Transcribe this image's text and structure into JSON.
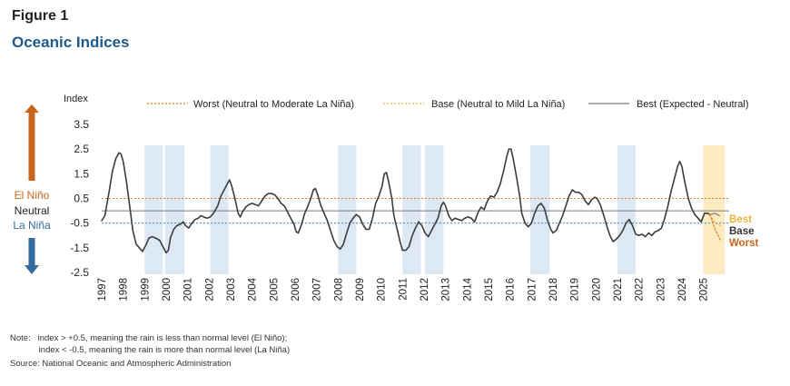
{
  "figure_label": "Figure 1",
  "figure_title": "Oceanic Indices",
  "left_axis_labels": {
    "el_nino": "El Niño",
    "neutral": "Neutral",
    "la_nina": "La Niña"
  },
  "colors": {
    "title_blue": "#1f5a8a",
    "arrow_up": "#c8661e",
    "arrow_down": "#356a9c",
    "band": "#dce8f3",
    "forecast_band": "#fdebc2",
    "worst_line": "#e07b2a",
    "base_line": "#f2b23a",
    "best_line": "#7a7a7a",
    "threshold_low": "#4a86c5",
    "series": "#3c3c3c"
  },
  "chart_data": {
    "type": "line",
    "ylabel": "Index",
    "ylim": [
      -2.5,
      3.5
    ],
    "yticks": [
      "3.5",
      "2.5",
      "1.5",
      "0.5",
      "-0.5",
      "-1.5",
      "-2.5"
    ],
    "xlim": [
      1997,
      2026.2
    ],
    "x_ticks": [
      "1997",
      "1998",
      "1999",
      "2000",
      "2001",
      "2002",
      "2003",
      "2004",
      "2005",
      "2006",
      "2007",
      "2008",
      "2009",
      "2010",
      "2011",
      "2012",
      "2013",
      "2014",
      "2015",
      "2016",
      "2017",
      "2018",
      "2019",
      "2020",
      "2021",
      "2022",
      "2023",
      "2024",
      "2025"
    ],
    "legend": [
      {
        "name": "Worst (Neutral to Moderate La Niña)",
        "style": "dotted-orange"
      },
      {
        "name": "Base (Neutral to Mild La Niña)",
        "style": "dotted-gold"
      },
      {
        "name": "Best (Expected - Neutral)",
        "style": "solid-gray"
      }
    ],
    "reference_lines": [
      {
        "name": "el-nino-threshold",
        "value": 0.5
      },
      {
        "name": "neutral-line",
        "value": 0
      },
      {
        "name": "la-nina-threshold",
        "value": -0.5
      }
    ],
    "shaded_periods": [
      [
        1999.0,
        1999.85
      ],
      [
        1999.95,
        2000.85
      ],
      [
        2002.05,
        2002.9
      ],
      [
        2008.0,
        2008.85
      ],
      [
        2011.0,
        2011.85
      ],
      [
        2012.05,
        2012.9
      ],
      [
        2016.95,
        2017.85
      ],
      [
        2021.0,
        2021.85
      ]
    ],
    "forecast_period": [
      2025.0,
      2026.0
    ],
    "series": [
      {
        "name": "Oceanic Index",
        "points": [
          [
            1997.0,
            -0.4
          ],
          [
            1997.15,
            -0.2
          ],
          [
            1997.35,
            0.8
          ],
          [
            1997.5,
            1.6
          ],
          [
            1997.65,
            2.1
          ],
          [
            1997.8,
            2.35
          ],
          [
            1997.9,
            2.3
          ],
          [
            1998.0,
            2.0
          ],
          [
            1998.15,
            1.2
          ],
          [
            1998.3,
            0.2
          ],
          [
            1998.45,
            -0.8
          ],
          [
            1998.6,
            -1.35
          ],
          [
            1998.75,
            -1.5
          ],
          [
            1998.9,
            -1.65
          ],
          [
            1999.05,
            -1.4
          ],
          [
            1999.2,
            -1.1
          ],
          [
            1999.35,
            -1.05
          ],
          [
            1999.5,
            -1.1
          ],
          [
            1999.7,
            -1.2
          ],
          [
            1999.85,
            -1.45
          ],
          [
            2000.0,
            -1.7
          ],
          [
            2000.1,
            -1.6
          ],
          [
            2000.2,
            -1.1
          ],
          [
            2000.35,
            -0.75
          ],
          [
            2000.5,
            -0.6
          ],
          [
            2000.65,
            -0.55
          ],
          [
            2000.8,
            -0.45
          ],
          [
            2000.9,
            -0.6
          ],
          [
            2001.05,
            -0.7
          ],
          [
            2001.2,
            -0.5
          ],
          [
            2001.35,
            -0.35
          ],
          [
            2001.5,
            -0.3
          ],
          [
            2001.6,
            -0.2
          ],
          [
            2001.75,
            -0.25
          ],
          [
            2001.9,
            -0.3
          ],
          [
            2002.05,
            -0.25
          ],
          [
            2002.2,
            -0.1
          ],
          [
            2002.4,
            0.2
          ],
          [
            2002.55,
            0.6
          ],
          [
            2002.7,
            0.85
          ],
          [
            2002.85,
            1.1
          ],
          [
            2002.95,
            1.25
          ],
          [
            2003.05,
            1.0
          ],
          [
            2003.2,
            0.5
          ],
          [
            2003.35,
            -0.1
          ],
          [
            2003.45,
            -0.25
          ],
          [
            2003.55,
            -0.05
          ],
          [
            2003.7,
            0.15
          ],
          [
            2003.85,
            0.25
          ],
          [
            2004.0,
            0.3
          ],
          [
            2004.15,
            0.25
          ],
          [
            2004.3,
            0.2
          ],
          [
            2004.45,
            0.4
          ],
          [
            2004.6,
            0.6
          ],
          [
            2004.75,
            0.7
          ],
          [
            2004.9,
            0.7
          ],
          [
            2005.05,
            0.65
          ],
          [
            2005.2,
            0.5
          ],
          [
            2005.35,
            0.3
          ],
          [
            2005.5,
            0.2
          ],
          [
            2005.65,
            -0.05
          ],
          [
            2005.8,
            -0.3
          ],
          [
            2005.95,
            -0.55
          ],
          [
            2006.05,
            -0.85
          ],
          [
            2006.15,
            -0.9
          ],
          [
            2006.3,
            -0.55
          ],
          [
            2006.45,
            -0.1
          ],
          [
            2006.6,
            0.2
          ],
          [
            2006.75,
            0.55
          ],
          [
            2006.85,
            0.85
          ],
          [
            2006.95,
            0.9
          ],
          [
            2007.05,
            0.65
          ],
          [
            2007.2,
            0.2
          ],
          [
            2007.35,
            -0.1
          ],
          [
            2007.5,
            -0.4
          ],
          [
            2007.65,
            -0.8
          ],
          [
            2007.8,
            -1.2
          ],
          [
            2007.95,
            -1.45
          ],
          [
            2008.1,
            -1.55
          ],
          [
            2008.25,
            -1.35
          ],
          [
            2008.4,
            -0.9
          ],
          [
            2008.55,
            -0.5
          ],
          [
            2008.7,
            -0.3
          ],
          [
            2008.85,
            -0.15
          ],
          [
            2009.0,
            -0.25
          ],
          [
            2009.15,
            -0.55
          ],
          [
            2009.3,
            -0.75
          ],
          [
            2009.45,
            -0.75
          ],
          [
            2009.6,
            -0.3
          ],
          [
            2009.75,
            0.3
          ],
          [
            2009.9,
            0.6
          ],
          [
            2010.05,
            1.0
          ],
          [
            2010.15,
            1.5
          ],
          [
            2010.25,
            1.55
          ],
          [
            2010.35,
            1.2
          ],
          [
            2010.5,
            0.5
          ],
          [
            2010.6,
            -0.2
          ],
          [
            2010.75,
            -0.75
          ],
          [
            2010.9,
            -1.3
          ],
          [
            2011.0,
            -1.6
          ],
          [
            2011.15,
            -1.6
          ],
          [
            2011.3,
            -1.45
          ],
          [
            2011.45,
            -1.0
          ],
          [
            2011.6,
            -0.7
          ],
          [
            2011.75,
            -0.45
          ],
          [
            2011.9,
            -0.6
          ],
          [
            2012.05,
            -0.9
          ],
          [
            2012.2,
            -1.05
          ],
          [
            2012.35,
            -0.8
          ],
          [
            2012.5,
            -0.55
          ],
          [
            2012.65,
            -0.3
          ],
          [
            2012.8,
            0.2
          ],
          [
            2012.9,
            0.35
          ],
          [
            2013.0,
            0.2
          ],
          [
            2013.15,
            -0.2
          ],
          [
            2013.3,
            -0.4
          ],
          [
            2013.45,
            -0.3
          ],
          [
            2013.6,
            -0.35
          ],
          [
            2013.75,
            -0.4
          ],
          [
            2013.9,
            -0.3
          ],
          [
            2014.05,
            -0.25
          ],
          [
            2014.2,
            -0.3
          ],
          [
            2014.35,
            -0.45
          ],
          [
            2014.5,
            -0.1
          ],
          [
            2014.65,
            0.15
          ],
          [
            2014.8,
            0.05
          ],
          [
            2014.95,
            0.4
          ],
          [
            2015.1,
            0.6
          ],
          [
            2015.25,
            0.55
          ],
          [
            2015.4,
            0.75
          ],
          [
            2015.55,
            1.1
          ],
          [
            2015.7,
            1.6
          ],
          [
            2015.85,
            2.2
          ],
          [
            2015.95,
            2.5
          ],
          [
            2016.05,
            2.5
          ],
          [
            2016.15,
            2.1
          ],
          [
            2016.3,
            1.4
          ],
          [
            2016.45,
            0.6
          ],
          [
            2016.55,
            -0.1
          ],
          [
            2016.7,
            -0.5
          ],
          [
            2016.85,
            -0.65
          ],
          [
            2017.0,
            -0.5
          ],
          [
            2017.15,
            -0.1
          ],
          [
            2017.3,
            0.2
          ],
          [
            2017.45,
            0.3
          ],
          [
            2017.6,
            0.1
          ],
          [
            2017.75,
            -0.4
          ],
          [
            2017.9,
            -0.75
          ],
          [
            2018.0,
            -0.9
          ],
          [
            2018.15,
            -0.8
          ],
          [
            2018.3,
            -0.5
          ],
          [
            2018.45,
            -0.2
          ],
          [
            2018.6,
            0.2
          ],
          [
            2018.75,
            0.6
          ],
          [
            2018.9,
            0.85
          ],
          [
            2019.05,
            0.75
          ],
          [
            2019.2,
            0.75
          ],
          [
            2019.35,
            0.65
          ],
          [
            2019.5,
            0.4
          ],
          [
            2019.65,
            0.25
          ],
          [
            2019.8,
            0.45
          ],
          [
            2019.95,
            0.55
          ],
          [
            2020.05,
            0.5
          ],
          [
            2020.2,
            0.25
          ],
          [
            2020.35,
            -0.15
          ],
          [
            2020.5,
            -0.6
          ],
          [
            2020.65,
            -1.0
          ],
          [
            2020.8,
            -1.25
          ],
          [
            2020.95,
            -1.15
          ],
          [
            2021.1,
            -1.0
          ],
          [
            2021.25,
            -0.8
          ],
          [
            2021.4,
            -0.5
          ],
          [
            2021.55,
            -0.35
          ],
          [
            2021.7,
            -0.6
          ],
          [
            2021.85,
            -0.95
          ],
          [
            2022.0,
            -1.0
          ],
          [
            2022.15,
            -0.95
          ],
          [
            2022.3,
            -1.05
          ],
          [
            2022.45,
            -0.9
          ],
          [
            2022.6,
            -1.0
          ],
          [
            2022.75,
            -0.85
          ],
          [
            2022.9,
            -0.8
          ],
          [
            2023.05,
            -0.7
          ],
          [
            2023.2,
            -0.3
          ],
          [
            2023.35,
            0.2
          ],
          [
            2023.5,
            0.8
          ],
          [
            2023.65,
            1.3
          ],
          [
            2023.8,
            1.8
          ],
          [
            2023.9,
            2.0
          ],
          [
            2024.0,
            1.8
          ],
          [
            2024.15,
            1.1
          ],
          [
            2024.3,
            0.5
          ],
          [
            2024.45,
            0.1
          ],
          [
            2024.6,
            -0.15
          ],
          [
            2024.75,
            -0.3
          ],
          [
            2024.9,
            -0.45
          ],
          [
            2025.05,
            -0.1
          ],
          [
            2025.2,
            -0.1
          ],
          [
            2025.3,
            -0.15
          ]
        ]
      },
      {
        "name": "Best",
        "points": [
          [
            2025.3,
            -0.15
          ],
          [
            2025.55,
            -0.1
          ],
          [
            2025.75,
            -0.2
          ]
        ]
      },
      {
        "name": "Base",
        "points": [
          [
            2025.3,
            -0.15
          ],
          [
            2025.55,
            -0.5
          ],
          [
            2025.8,
            -0.6
          ]
        ]
      },
      {
        "name": "Worst",
        "points": [
          [
            2025.3,
            -0.15
          ],
          [
            2025.55,
            -0.75
          ],
          [
            2025.8,
            -1.2
          ]
        ]
      }
    ],
    "scenario_labels": {
      "best": "Best",
      "base": "Base",
      "worst": "Worst"
    }
  },
  "notes": {
    "line1": "Note:   index > +0.5, meaning the rain is less than normal level (El Niño);",
    "line2": "            index < -0.5, meaning the rain is more than normal level (La Niña)",
    "source": "Source: National Oceanic and Atmospheric Administration"
  }
}
